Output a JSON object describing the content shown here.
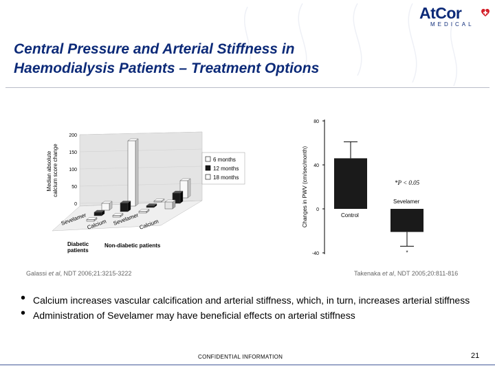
{
  "brand": {
    "name": "AtCor",
    "sub": "MEDICAL"
  },
  "slide": {
    "title_line1": "Central Pressure and Arterial Stiffness in",
    "title_line2": "Haemodialysis Patients – Treatment Options",
    "number": "21",
    "footer": "CONFIDENTIAL INFORMATION"
  },
  "citations": {
    "left": {
      "authors": "Galassi ",
      "etal": "et al",
      "rest": ", NDT 2006;21:3215-3222"
    },
    "right": {
      "authors": "Takenaka ",
      "etal": "et al",
      "rest": ", NDT 2005;20:811-816"
    }
  },
  "bullets": [
    "Calcium increases vascular calcification and arterial stiffness, which, in turn, increases arterial stiffness",
    "Administration of Sevelamer may have beneficial effects on arterial stiffness"
  ],
  "colors": {
    "title": "#0c2a78",
    "brand_red": "#d4202a"
  },
  "icons": {
    "logo": "heart-cross-icon"
  },
  "chart_data": [
    {
      "type": "bar",
      "title": "",
      "ylabel": "Median absolute calcium score change",
      "ylim": [
        0,
        200
      ],
      "yticks": [
        "200",
        "150",
        "100",
        "50",
        "0"
      ],
      "categories": [
        "Sevelamer",
        "Calcium",
        "Sevelamer",
        "Calcium"
      ],
      "groups": [
        "Diabetic patients",
        "Non-diabetic patients"
      ],
      "series": [
        {
          "name": "6 months",
          "values": [
            5,
            5,
            5,
            20
          ]
        },
        {
          "name": "12 months",
          "values": [
            10,
            25,
            5,
            30
          ]
        },
        {
          "name": "18 months",
          "values": [
            20,
            190,
            0,
            50
          ]
        }
      ],
      "legend_position": "right"
    },
    {
      "type": "bar",
      "title": "",
      "ylabel": "Changes in PWV (cm/sec/month)",
      "ylim": [
        -40,
        80
      ],
      "yticks": [
        "80",
        "40",
        "0",
        "-40"
      ],
      "categories": [
        "Control",
        "Sevelamer"
      ],
      "values": [
        46,
        -21
      ],
      "errors": [
        15,
        13
      ],
      "annotation": "*P < 0.05",
      "star": "*"
    }
  ]
}
